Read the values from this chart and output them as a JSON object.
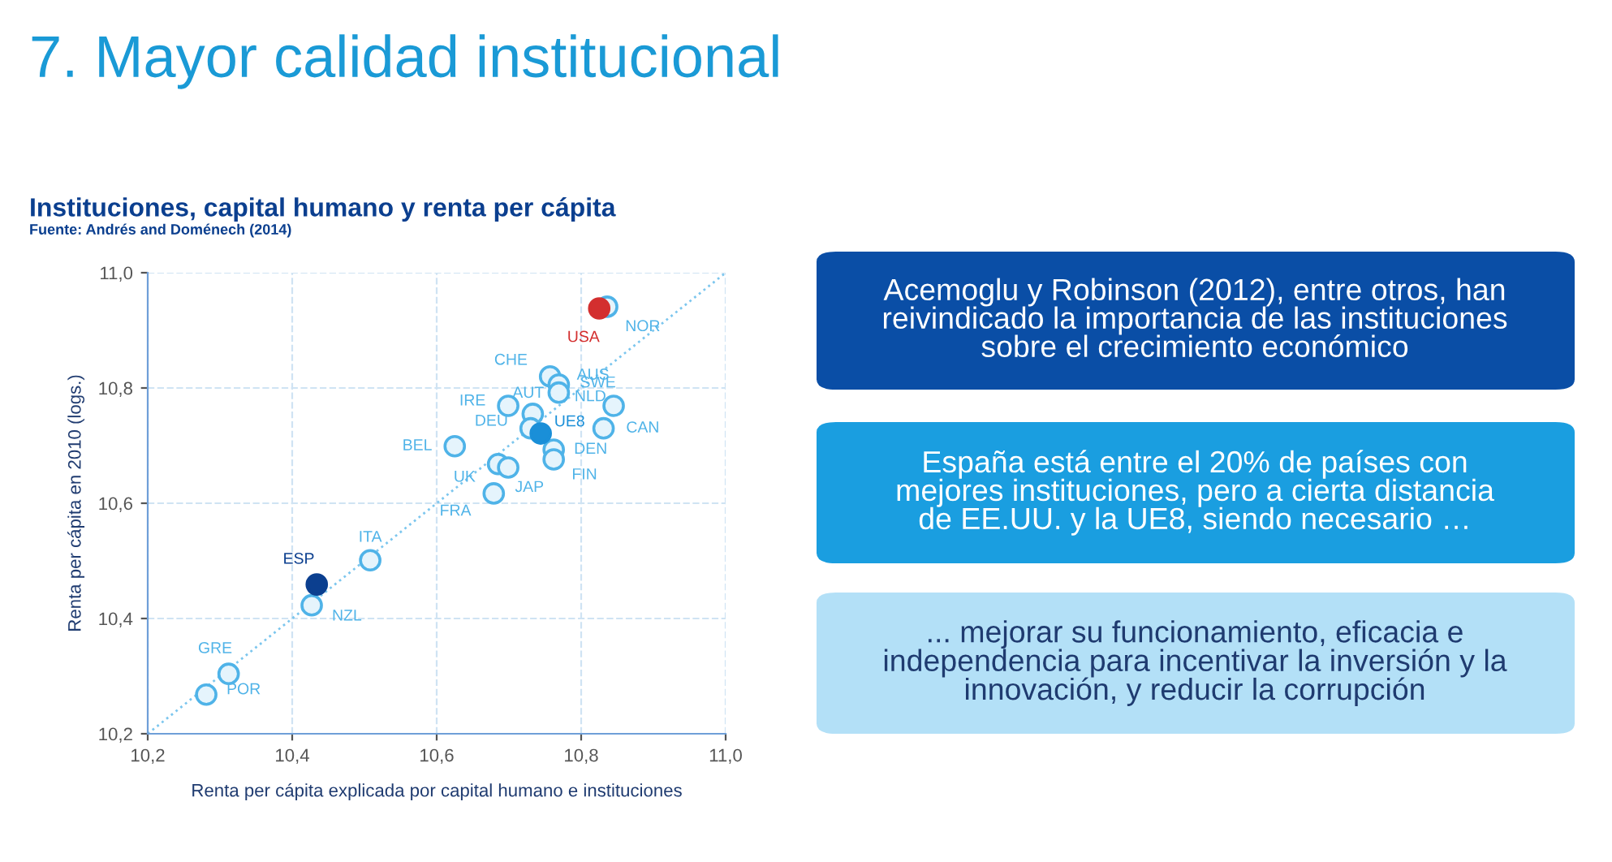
{
  "chart_data": {
    "type": "scatter",
    "title": "7. Mayor calidad institucional",
    "subtitle": "Instituciones, capital humano y renta per cápita",
    "xlabel": "Renta per cápita explicada por capital humano e instituciones",
    "ylabel": "Renta per cápita en 2010 (logs.)",
    "annotations": [
      "Fuente: Andrés and Doménech (2014)",
      "Acemoglu y Robinson (2012), entre otros, han\nreivindicado la importancia de las instituciones\nsobre el crecimiento económico",
      "España está entre el 20% de países con\nmejores instituciones, pero a cierta distancia\nde EE.UU. y la UE8, siendo necesario …",
      "... mejorar su funcionamiento, eficacia e\nindependencia para incentivar la inversión y la\ninnovación, y reducir la corrupción"
    ],
    "series": [
      {
        "type": "line",
        "color": "#7cc6ee",
        "line_style": "dotted",
        "marker": "none",
        "x": [
          10.2,
          11.0
        ],
        "values": [
          10.2,
          11.0
        ]
      },
      {
        "color": "#4fb3e8",
        "marker": "circle",
        "x": [
          10.836,
          10.757,
          10.769,
          10.769,
          10.845,
          10.699,
          10.733,
          10.73,
          10.831,
          10.762,
          10.762,
          10.625,
          10.685,
          10.699,
          10.679,
          10.508,
          10.427,
          10.312,
          10.281
        ],
        "values": [
          10.941,
          10.82,
          10.806,
          10.792,
          10.769,
          10.769,
          10.755,
          10.73,
          10.73,
          10.693,
          10.676,
          10.699,
          10.668,
          10.662,
          10.617,
          10.501,
          10.423,
          10.304,
          10.268
        ],
        "value_labels": [
          "NOR",
          "CHE",
          "AUS",
          "NLD",
          "SWE",
          "IRE",
          "AUT",
          "DEU",
          "CAN",
          "DEN",
          "FIN",
          "BEL",
          "UK",
          "JAP",
          "FRA",
          "ITA",
          "NZL",
          "GRE",
          "POR"
        ]
      },
      {
        "type": "scatter",
        "color": "#1a8fd8",
        "marker": "circle",
        "x": [
          10.744
        ],
        "values": [
          10.721
        ],
        "value_labels": [
          "UE8"
        ]
      },
      {
        "type": "scatter",
        "color": "#d32f2f",
        "marker": "circle",
        "x": [
          10.825
        ],
        "values": [
          10.938
        ],
        "value_labels": [
          "USA"
        ]
      },
      {
        "type": "scatter",
        "color": "#0b3f8f",
        "marker": "circle",
        "x": [
          10.434
        ],
        "values": [
          10.459
        ],
        "value_labels": [
          "ESP"
        ]
      }
    ],
    "xlim": [
      10.2,
      11.0
    ],
    "ylim": [
      10.2,
      11.0
    ],
    "xticks": [
      {
        "value": 10.2,
        "label": "10,2"
      },
      {
        "value": 10.4,
        "label": "10,4"
      },
      {
        "value": 10.6,
        "label": "10,6"
      },
      {
        "value": 10.8,
        "label": "10,8"
      },
      {
        "value": 11.0,
        "label": "11,0"
      }
    ],
    "yticks": [
      {
        "value": 10.2,
        "label": "10,2"
      },
      {
        "value": 10.4,
        "label": "10,4"
      },
      {
        "value": 10.6,
        "label": "10,6"
      },
      {
        "value": 10.8,
        "label": "10,8"
      },
      {
        "value": 11.0,
        "label": "11,0"
      }
    ],
    "grid": true,
    "legend": false
  }
}
